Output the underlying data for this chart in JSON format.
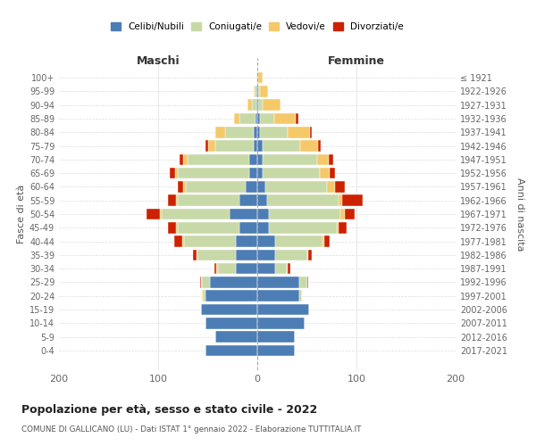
{
  "age_groups": [
    "0-4",
    "5-9",
    "10-14",
    "15-19",
    "20-24",
    "25-29",
    "30-34",
    "35-39",
    "40-44",
    "45-49",
    "50-54",
    "55-59",
    "60-64",
    "65-69",
    "70-74",
    "75-79",
    "80-84",
    "85-89",
    "90-94",
    "95-99",
    "100+"
  ],
  "birth_years": [
    "2017-2021",
    "2012-2016",
    "2007-2011",
    "2002-2006",
    "1997-2001",
    "1992-1996",
    "1987-1991",
    "1982-1986",
    "1977-1981",
    "1972-1976",
    "1967-1971",
    "1962-1966",
    "1957-1961",
    "1952-1956",
    "1947-1951",
    "1942-1946",
    "1937-1941",
    "1932-1936",
    "1927-1931",
    "1922-1926",
    "≤ 1921"
  ],
  "maschi": {
    "celibi": [
      52,
      42,
      52,
      57,
      52,
      48,
      22,
      22,
      22,
      18,
      28,
      18,
      12,
      8,
      8,
      4,
      4,
      2,
      1,
      1,
      0
    ],
    "coniugati": [
      0,
      0,
      0,
      0,
      3,
      8,
      18,
      38,
      52,
      62,
      68,
      62,
      60,
      72,
      62,
      38,
      28,
      16,
      4,
      2,
      1
    ],
    "vedovi": [
      0,
      0,
      0,
      0,
      1,
      1,
      1,
      1,
      2,
      2,
      2,
      2,
      3,
      3,
      5,
      8,
      10,
      5,
      5,
      1,
      0
    ],
    "divorziati": [
      0,
      0,
      0,
      0,
      0,
      1,
      2,
      4,
      8,
      8,
      14,
      8,
      5,
      5,
      3,
      2,
      0,
      0,
      0,
      0,
      0
    ]
  },
  "femmine": {
    "nubili": [
      38,
      38,
      48,
      52,
      42,
      42,
      18,
      18,
      18,
      12,
      12,
      10,
      8,
      5,
      5,
      5,
      3,
      3,
      1,
      1,
      0
    ],
    "coniugate": [
      0,
      0,
      0,
      0,
      3,
      8,
      12,
      32,
      48,
      68,
      72,
      72,
      62,
      58,
      55,
      38,
      28,
      14,
      4,
      2,
      1
    ],
    "vedove": [
      0,
      0,
      0,
      0,
      0,
      0,
      1,
      1,
      2,
      2,
      4,
      4,
      8,
      10,
      12,
      18,
      22,
      22,
      18,
      8,
      4
    ],
    "divorziate": [
      0,
      0,
      0,
      0,
      0,
      1,
      2,
      4,
      5,
      8,
      10,
      20,
      10,
      5,
      5,
      3,
      2,
      2,
      0,
      0,
      0
    ]
  },
  "colors": {
    "celibi": "#4d7db5",
    "coniugati": "#c8d9a8",
    "vedovi": "#f5c96a",
    "divorziati": "#cc2200"
  },
  "xlim": 200,
  "xlabel_left": "Maschi",
  "xlabel_right": "Femmine",
  "ylabel_left": "Fasce di età",
  "ylabel_right": "Anni di nascita",
  "title": "Popolazione per età, sesso e stato civile - 2022",
  "subtitle": "COMUNE DI GALLICANO (LU) - Dati ISTAT 1° gennaio 2022 - Elaborazione TUTTITALIA.IT",
  "legend_labels": [
    "Celibi/Nubili",
    "Coniugati/e",
    "Vedovi/e",
    "Divorziati/e"
  ],
  "background_color": "#ffffff",
  "grid_color": "#cccccc"
}
